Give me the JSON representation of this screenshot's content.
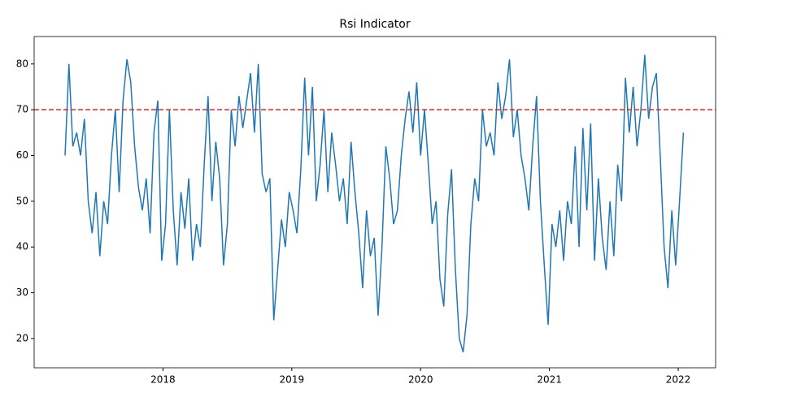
{
  "chart_data": {
    "type": "line",
    "title": "Rsi Indicator",
    "x": [
      2017.24,
      2017.27,
      2017.3,
      2017.33,
      2017.36,
      2017.39,
      2017.42,
      2017.45,
      2017.48,
      2017.51,
      2017.54,
      2017.57,
      2017.6,
      2017.63,
      2017.66,
      2017.69,
      2017.72,
      2017.75,
      2017.78,
      2017.81,
      2017.84,
      2017.87,
      2017.9,
      2017.93,
      2017.96,
      2017.99,
      2018.02,
      2018.05,
      2018.08,
      2018.11,
      2018.14,
      2018.17,
      2018.2,
      2018.23,
      2018.26,
      2018.29,
      2018.32,
      2018.35,
      2018.38,
      2018.41,
      2018.44,
      2018.47,
      2018.5,
      2018.53,
      2018.56,
      2018.59,
      2018.62,
      2018.65,
      2018.68,
      2018.71,
      2018.74,
      2018.77,
      2018.8,
      2018.83,
      2018.86,
      2018.89,
      2018.92,
      2018.95,
      2018.98,
      2019.01,
      2019.04,
      2019.07,
      2019.1,
      2019.13,
      2019.16,
      2019.19,
      2019.22,
      2019.25,
      2019.28,
      2019.31,
      2019.34,
      2019.37,
      2019.4,
      2019.43,
      2019.46,
      2019.49,
      2019.52,
      2019.55,
      2019.58,
      2019.61,
      2019.64,
      2019.67,
      2019.7,
      2019.73,
      2019.76,
      2019.79,
      2019.82,
      2019.85,
      2019.88,
      2019.91,
      2019.94,
      2019.97,
      2020.0,
      2020.03,
      2020.06,
      2020.09,
      2020.12,
      2020.15,
      2020.18,
      2020.21,
      2020.24,
      2020.27,
      2020.3,
      2020.33,
      2020.36,
      2020.39,
      2020.42,
      2020.45,
      2020.48,
      2020.51,
      2020.54,
      2020.57,
      2020.6,
      2020.63,
      2020.66,
      2020.69,
      2020.72,
      2020.75,
      2020.78,
      2020.81,
      2020.84,
      2020.87,
      2020.9,
      2020.93,
      2020.96,
      2020.99,
      2021.02,
      2021.05,
      2021.08,
      2021.11,
      2021.14,
      2021.17,
      2021.2,
      2021.23,
      2021.26,
      2021.29,
      2021.32,
      2021.35,
      2021.38,
      2021.41,
      2021.44,
      2021.47,
      2021.5,
      2021.53,
      2021.56,
      2021.59,
      2021.62,
      2021.65,
      2021.68,
      2021.71,
      2021.74,
      2021.77,
      2021.8,
      2021.83,
      2021.86,
      2021.89,
      2021.92,
      2021.95,
      2021.98,
      2022.01,
      2022.04
    ],
    "series": [
      {
        "color": "#1f77b4",
        "values": [
          60,
          80,
          62,
          65,
          60,
          68,
          50,
          43,
          52,
          38,
          50,
          45,
          60,
          70,
          52,
          72,
          81,
          76,
          62,
          53,
          48,
          55,
          43,
          65,
          72,
          37,
          45,
          70,
          48,
          36,
          52,
          44,
          55,
          37,
          45,
          40,
          58,
          73,
          50,
          63,
          55,
          36,
          45,
          70,
          62,
          73,
          66,
          72,
          78,
          65,
          80,
          56,
          52,
          55,
          24,
          35,
          46,
          40,
          52,
          48,
          43,
          57,
          77,
          60,
          75,
          50,
          58,
          70,
          52,
          65,
          58,
          50,
          55,
          45,
          63,
          52,
          43,
          31,
          48,
          38,
          42,
          25,
          40,
          62,
          55,
          45,
          48,
          60,
          68,
          74,
          65,
          76,
          60,
          70,
          58,
          45,
          50,
          33,
          27,
          47,
          57,
          35,
          20,
          17,
          25,
          45,
          55,
          50,
          70,
          62,
          65,
          60,
          76,
          68,
          73,
          81,
          64,
          70,
          60,
          55,
          48,
          62,
          73,
          50,
          36,
          23,
          45,
          40,
          48,
          37,
          50,
          45,
          62,
          40,
          66,
          48,
          67,
          37,
          55,
          42,
          35,
          50,
          38,
          58,
          50,
          77,
          65,
          75,
          62,
          70,
          82,
          68,
          75,
          78,
          60,
          40,
          31,
          48,
          36,
          50,
          65
        ]
      }
    ],
    "hlines": [
      {
        "value": 70,
        "color": "#d62728"
      }
    ],
    "xlim": [
      2017.0,
      2022.29
    ],
    "xticks": [
      2018,
      2019,
      2020,
      2021,
      2022
    ],
    "ylim": [
      13.6,
      86.0
    ],
    "yticks": [
      20,
      30,
      40,
      50,
      60,
      70,
      80
    ]
  }
}
